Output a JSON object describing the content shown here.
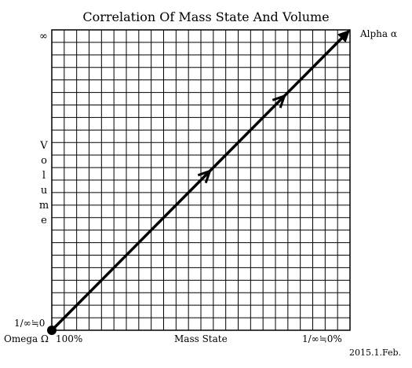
{
  "title": "Correlation Of Mass State And Volume",
  "y_axis": {
    "top_label": "∞",
    "bottom_label": "1/∞≒0",
    "title_letters": [
      "V",
      "o",
      "l",
      "u",
      "m",
      "e"
    ]
  },
  "x_axis": {
    "left_label": "100%",
    "center_label": "Mass State",
    "right_label": "1/∞≒0%"
  },
  "origin_label": "Omega Ω",
  "end_label": "Alpha α",
  "date": "2015.1.Feb.",
  "grid": {
    "columns": 24,
    "rows": 24,
    "visible": true
  },
  "arrow": {
    "from": [
      0,
      0
    ],
    "to": [
      1,
      1
    ],
    "intermediate_arrowheads": [
      0.53,
      0.78
    ],
    "color": "#000000"
  }
}
